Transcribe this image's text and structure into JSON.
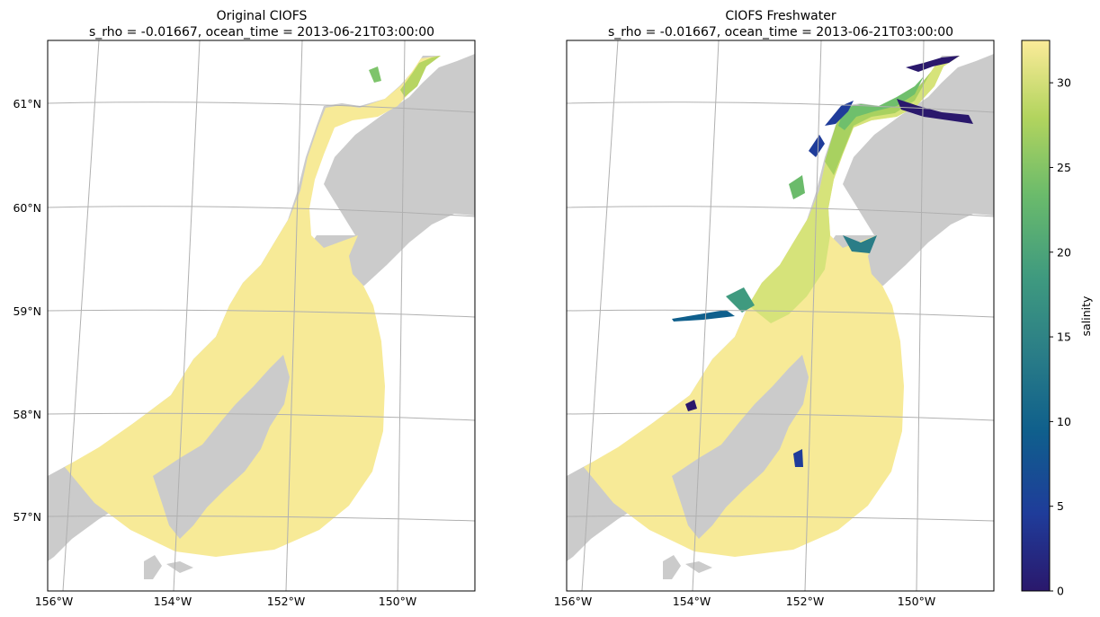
{
  "panels": [
    {
      "title_line1": "Original CIOFS",
      "title_line2": "s_rho = -0.01667, ocean_time = 2013-06-21T03:00:00",
      "variant": "original"
    },
    {
      "title_line1": "CIOFS Freshwater",
      "title_line2": "s_rho = -0.01667, ocean_time = 2013-06-21T03:00:00",
      "variant": "freshwater"
    }
  ],
  "lat_labels": [
    "61°N",
    "60°N",
    "59°N",
    "58°N",
    "57°N"
  ],
  "lon_labels": [
    "156°W",
    "154°W",
    "152°W",
    "150°W"
  ],
  "colorbar": {
    "label": "salinity",
    "ticks": [
      "0",
      "5",
      "10",
      "15",
      "20",
      "25",
      "30"
    ],
    "vmin": 0,
    "vmax": 32.5,
    "colormap": "haline",
    "stops": [
      "#2a186c",
      "#1f3c9a",
      "#0f5f8c",
      "#2a7d87",
      "#3f9a7f",
      "#6bbb6b",
      "#b2d45e",
      "#fbeb99"
    ]
  },
  "colors": {
    "land": "#cbcbcb",
    "ocean_high": "#f6e895",
    "grid": "#b0b0b0"
  }
}
